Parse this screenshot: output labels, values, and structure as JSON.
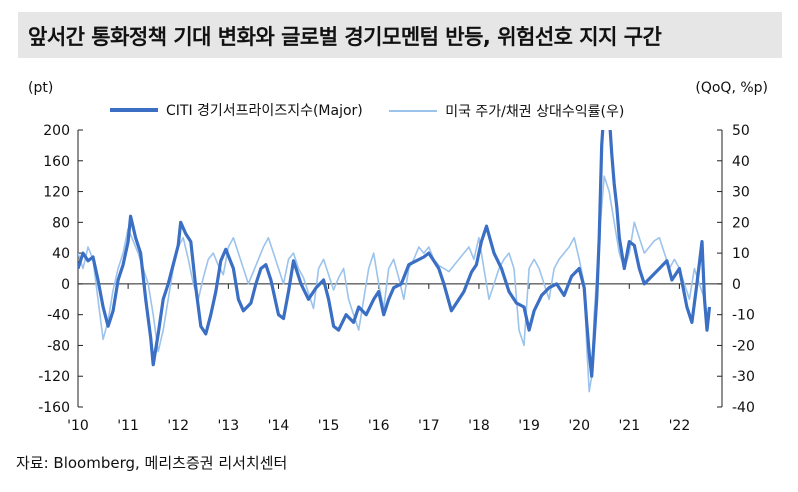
{
  "title": "앞서간 통화정책 기대 변화와 글로벌 경기모멘텀 반등, 위험선호 지지 구간",
  "source": "자료: Bloomberg, 메리츠증권 리서치센터",
  "chart_data": {
    "type": "line",
    "left_unit": "(pt)",
    "right_unit": "(QoQ, %p)",
    "ylim_left": [
      -160,
      200
    ],
    "ylim_right": [
      -40,
      50
    ],
    "y_ticks_left": [
      "200",
      "160",
      "120",
      "80",
      "40",
      "0",
      "-40",
      "-80",
      "-120",
      "-160"
    ],
    "y_ticks_right": [
      "50",
      "40",
      "30",
      "20",
      "10",
      "0",
      "-10",
      "-20",
      "-30",
      "-40"
    ],
    "x_ticks": [
      "'10",
      "'11",
      "'12",
      "'13",
      "'14",
      "'15",
      "'16",
      "'17",
      "'18",
      "'19",
      "'20",
      "'21",
      "'22"
    ],
    "grid": false,
    "legend_position": "top",
    "series": [
      {
        "name": "CITI 경기서프라이즈지수(Major)",
        "axis": "left",
        "color": "#3a6fc4",
        "x": [
          2010.0,
          2010.1,
          2010.2,
          2010.3,
          2010.4,
          2010.5,
          2010.6,
          2010.7,
          2010.8,
          2010.9,
          2011.0,
          2011.05,
          2011.15,
          2011.25,
          2011.35,
          2011.45,
          2011.5,
          2011.55,
          2011.6,
          2011.7,
          2011.8,
          2011.9,
          2012.0,
          2012.05,
          2012.15,
          2012.25,
          2012.35,
          2012.45,
          2012.55,
          2012.65,
          2012.75,
          2012.85,
          2012.95,
          2013.1,
          2013.2,
          2013.3,
          2013.45,
          2013.55,
          2013.65,
          2013.75,
          2013.85,
          2014.0,
          2014.1,
          2014.2,
          2014.3,
          2014.45,
          2014.6,
          2014.75,
          2014.9,
          2015.0,
          2015.1,
          2015.2,
          2015.35,
          2015.5,
          2015.6,
          2015.75,
          2015.9,
          2016.0,
          2016.1,
          2016.2,
          2016.3,
          2016.45,
          2016.6,
          2016.75,
          2016.9,
          2017.0,
          2017.1,
          2017.2,
          2017.3,
          2017.45,
          2017.55,
          2017.7,
          2017.85,
          2017.95,
          2018.05,
          2018.15,
          2018.3,
          2018.45,
          2018.6,
          2018.75,
          2018.9,
          2019.0,
          2019.1,
          2019.25,
          2019.4,
          2019.55,
          2019.7,
          2019.85,
          2020.0,
          2020.1,
          2020.15,
          2020.2,
          2020.25,
          2020.3,
          2020.35,
          2020.4,
          2020.45,
          2020.5,
          2020.55,
          2020.6,
          2020.65,
          2020.7,
          2020.75,
          2020.8,
          2020.85,
          2020.9,
          2021.0,
          2021.1,
          2021.2,
          2021.3,
          2021.45,
          2021.6,
          2021.75,
          2021.85,
          2022.0,
          2022.15,
          2022.25,
          2022.35,
          2022.45,
          2022.5,
          2022.55,
          2022.6
        ],
        "y": [
          20,
          40,
          30,
          35,
          5,
          -30,
          -55,
          -35,
          5,
          25,
          55,
          88,
          60,
          40,
          -20,
          -70,
          -105,
          -85,
          -65,
          -20,
          0,
          25,
          50,
          80,
          65,
          55,
          -5,
          -55,
          -65,
          -40,
          -10,
          30,
          45,
          20,
          -20,
          -35,
          -25,
          0,
          20,
          25,
          5,
          -40,
          -45,
          -10,
          30,
          0,
          -20,
          -5,
          5,
          -20,
          -55,
          -60,
          -40,
          -50,
          -30,
          -40,
          -20,
          -10,
          -40,
          -20,
          -5,
          0,
          25,
          30,
          35,
          40,
          30,
          20,
          0,
          -35,
          -25,
          -10,
          15,
          25,
          55,
          75,
          40,
          20,
          -10,
          -25,
          -30,
          -60,
          -35,
          -15,
          -5,
          0,
          -15,
          10,
          20,
          -5,
          -50,
          -90,
          -120,
          -70,
          -20,
          60,
          180,
          230,
          240,
          220,
          170,
          130,
          100,
          60,
          40,
          20,
          55,
          50,
          20,
          0,
          10,
          20,
          30,
          5,
          20,
          -30,
          -50,
          0,
          55,
          -20,
          -60,
          -30
        ]
      },
      {
        "name": "미국 주가/채권 상대수익률(우)",
        "axis": "right",
        "color": "#9cc3ec",
        "x": [
          2010.0,
          2010.1,
          2010.2,
          2010.3,
          2010.4,
          2010.5,
          2010.6,
          2010.7,
          2010.8,
          2010.9,
          2011.0,
          2011.1,
          2011.2,
          2011.3,
          2011.4,
          2011.5,
          2011.6,
          2011.7,
          2011.8,
          2011.9,
          2012.0,
          2012.1,
          2012.2,
          2012.3,
          2012.4,
          2012.5,
          2012.6,
          2012.7,
          2012.8,
          2012.9,
          2013.0,
          2013.1,
          2013.2,
          2013.3,
          2013.4,
          2013.5,
          2013.6,
          2013.7,
          2013.8,
          2013.9,
          2014.0,
          2014.1,
          2014.2,
          2014.3,
          2014.4,
          2014.5,
          2014.6,
          2014.7,
          2014.8,
          2014.9,
          2015.0,
          2015.1,
          2015.2,
          2015.3,
          2015.4,
          2015.5,
          2015.6,
          2015.7,
          2015.8,
          2015.9,
          2016.0,
          2016.1,
          2016.2,
          2016.3,
          2016.4,
          2016.5,
          2016.6,
          2016.7,
          2016.8,
          2016.9,
          2017.0,
          2017.1,
          2017.2,
          2017.3,
          2017.4,
          2017.5,
          2017.6,
          2017.7,
          2017.8,
          2017.9,
          2018.0,
          2018.1,
          2018.2,
          2018.3,
          2018.4,
          2018.5,
          2018.6,
          2018.7,
          2018.8,
          2018.9,
          2019.0,
          2019.1,
          2019.2,
          2019.3,
          2019.4,
          2019.5,
          2019.6,
          2019.7,
          2019.8,
          2019.9,
          2020.0,
          2020.1,
          2020.15,
          2020.2,
          2020.25,
          2020.3,
          2020.4,
          2020.5,
          2020.6,
          2020.7,
          2020.8,
          2020.9,
          2021.0,
          2021.1,
          2021.2,
          2021.3,
          2021.4,
          2021.5,
          2021.6,
          2021.7,
          2021.8,
          2021.9,
          2022.0,
          2022.1,
          2022.2,
          2022.3,
          2022.4,
          2022.5,
          2022.55,
          2022.6
        ],
        "y": [
          10,
          5,
          12,
          8,
          -5,
          -18,
          -12,
          -2,
          5,
          10,
          18,
          14,
          10,
          5,
          0,
          -10,
          -22,
          -15,
          -5,
          5,
          12,
          15,
          8,
          0,
          -5,
          2,
          8,
          10,
          6,
          3,
          12,
          15,
          10,
          5,
          0,
          4,
          8,
          12,
          15,
          10,
          5,
          0,
          8,
          10,
          5,
          2,
          -3,
          -8,
          5,
          8,
          3,
          -2,
          2,
          5,
          -5,
          -10,
          -15,
          -5,
          5,
          10,
          0,
          -8,
          5,
          8,
          2,
          -5,
          5,
          8,
          12,
          10,
          12,
          8,
          6,
          5,
          4,
          6,
          8,
          10,
          12,
          8,
          15,
          5,
          -5,
          0,
          5,
          8,
          10,
          5,
          -15,
          -20,
          5,
          8,
          5,
          0,
          -5,
          5,
          8,
          10,
          12,
          15,
          8,
          0,
          -20,
          -35,
          -30,
          -10,
          15,
          35,
          30,
          20,
          10,
          5,
          10,
          20,
          15,
          10,
          12,
          14,
          15,
          10,
          5,
          8,
          5,
          0,
          -5,
          5,
          0,
          -5,
          -15,
          -10
        ]
      }
    ]
  }
}
